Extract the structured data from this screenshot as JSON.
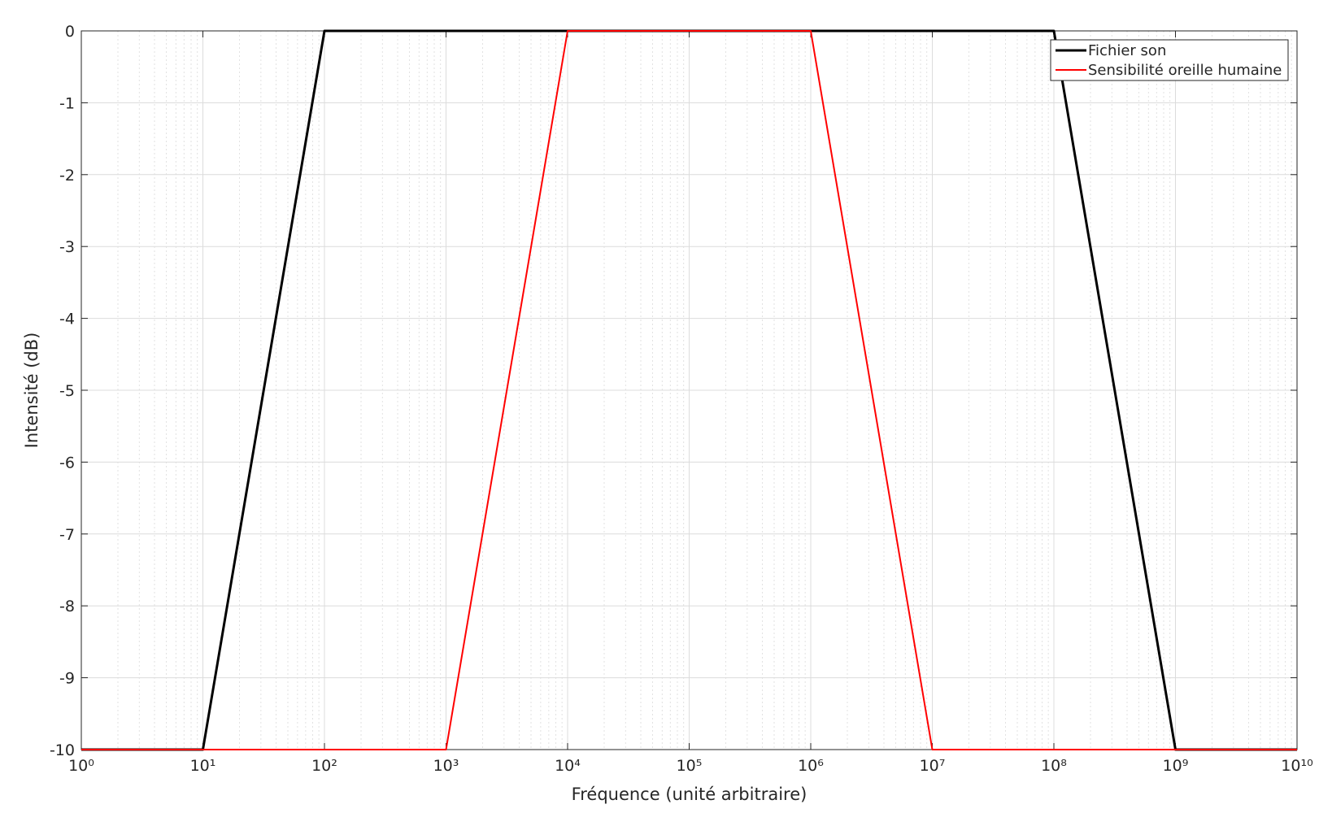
{
  "chart_data": {
    "type": "line",
    "x_label": "Fréquence (unité arbitraire)",
    "y_label": "Intensité (dB)",
    "x_scale": "log",
    "xlim": [
      1,
      10000000000
    ],
    "xticks": [
      {
        "value": 1,
        "label": "10⁰"
      },
      {
        "value": 10,
        "label": "10¹"
      },
      {
        "value": 100,
        "label": "10²"
      },
      {
        "value": 1000,
        "label": "10³"
      },
      {
        "value": 10000,
        "label": "10⁴"
      },
      {
        "value": 100000,
        "label": "10⁵"
      },
      {
        "value": 1000000,
        "label": "10⁶"
      },
      {
        "value": 10000000,
        "label": "10⁷"
      },
      {
        "value": 100000000,
        "label": "10⁸"
      },
      {
        "value": 1000000000,
        "label": "10⁹"
      },
      {
        "value": 10000000000,
        "label": "10¹⁰"
      }
    ],
    "ylim": [
      -10,
      0
    ],
    "yticks": [
      -10,
      -9,
      -8,
      -7,
      -6,
      -5,
      -4,
      -3,
      -2,
      -1,
      0
    ],
    "grid": true,
    "minor_grid": true,
    "legend": "northeast",
    "series": [
      {
        "name": "Fichier son",
        "color": "#000000",
        "width": 3,
        "x": [
          1,
          10,
          100,
          100000000,
          1000000000,
          10000000000
        ],
        "values": [
          -10,
          -10,
          0,
          0,
          -10,
          -10
        ]
      },
      {
        "name": "Sensibilité oreille humaine",
        "color": "#ff0000",
        "width": 2,
        "x": [
          1,
          1000,
          10000,
          1000000,
          10000000,
          10000000000
        ],
        "values": [
          -10,
          -10,
          0,
          0,
          -10,
          -10
        ]
      }
    ]
  }
}
